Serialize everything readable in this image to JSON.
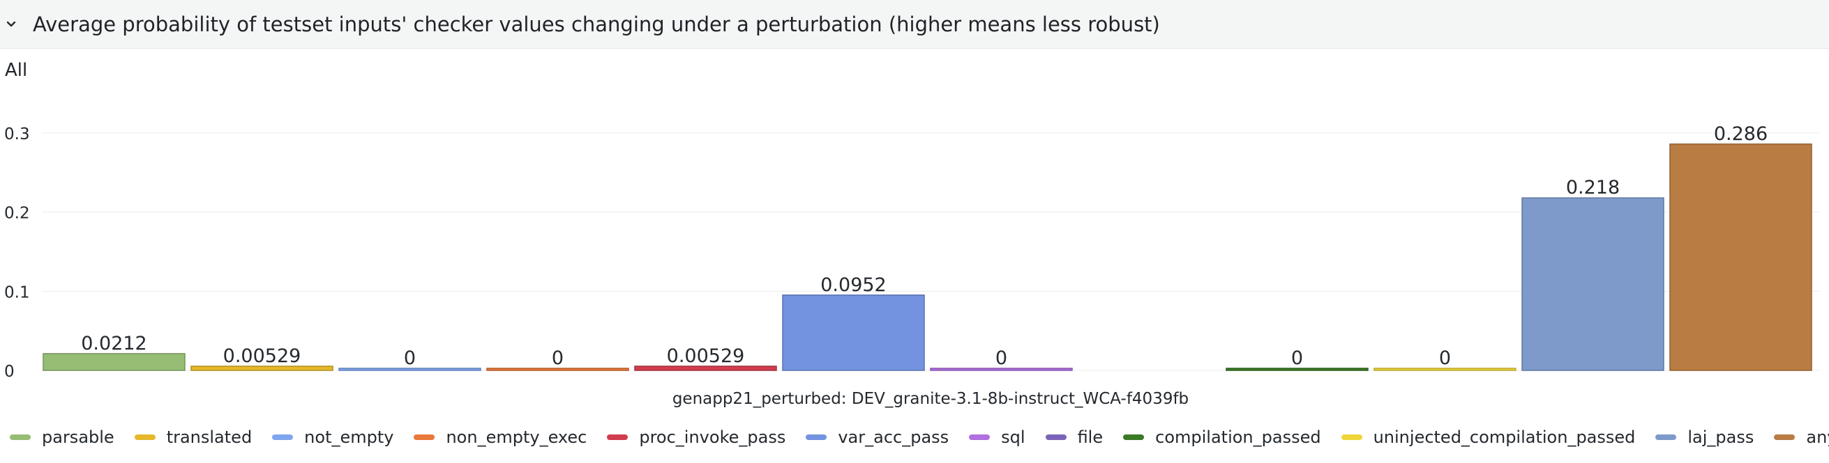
{
  "panel": {
    "title": "Average probability of testset inputs' checker values changing under a perturbation (higher means less robust)",
    "collapse_icon": "chevron-down-icon",
    "series_label": "All"
  },
  "chart_data": {
    "type": "bar",
    "title": "Average probability of testset inputs' checker values changing under a perturbation (higher means less robust)",
    "xlabel": "genapp21_perturbed: DEV_granite-3.1-8b-instruct_WCA-f4039fb",
    "ylabel": "",
    "ylim": [
      0,
      0.3
    ],
    "yticks": [
      0,
      0.1,
      0.2,
      0.3
    ],
    "grid": true,
    "legend_position": "bottom",
    "categories": [
      "genapp21_perturbed: DEV_granite-3.1-8b-instruct_WCA-f4039fb"
    ],
    "series": [
      {
        "name": "parsable",
        "values": [
          0.0212
        ],
        "label": "0.0212",
        "color": "#96bd74"
      },
      {
        "name": "translated",
        "values": [
          0.00529
        ],
        "label": "0.00529",
        "color": "#e5b82a"
      },
      {
        "name": "not_empty",
        "values": [
          0
        ],
        "label": "0",
        "color": "#7ea6ef"
      },
      {
        "name": "non_empty_exec",
        "values": [
          0
        ],
        "label": "0",
        "color": "#e8793a"
      },
      {
        "name": "proc_invoke_pass",
        "values": [
          0.00529
        ],
        "label": "0.00529",
        "color": "#d13d4e"
      },
      {
        "name": "var_acc_pass",
        "values": [
          0.0952
        ],
        "label": "0.0952",
        "color": "#7393e0"
      },
      {
        "name": "sql",
        "values": [
          0
        ],
        "label": "0",
        "color": "#b070e0"
      },
      {
        "name": "file",
        "values": [
          null
        ],
        "label": "",
        "color": "#7b64b8"
      },
      {
        "name": "compilation_passed",
        "values": [
          0
        ],
        "label": "0",
        "color": "#3b7a27"
      },
      {
        "name": "uninjected_compilation_passed",
        "values": [
          0
        ],
        "label": "0",
        "color": "#efd43a"
      },
      {
        "name": "laj_pass",
        "values": [
          0.218
        ],
        "label": "0.218",
        "color": "#7d9acb"
      },
      {
        "name": "any_checker",
        "values": [
          0.286
        ],
        "label": "0.286",
        "color": "#b97c42"
      }
    ]
  }
}
